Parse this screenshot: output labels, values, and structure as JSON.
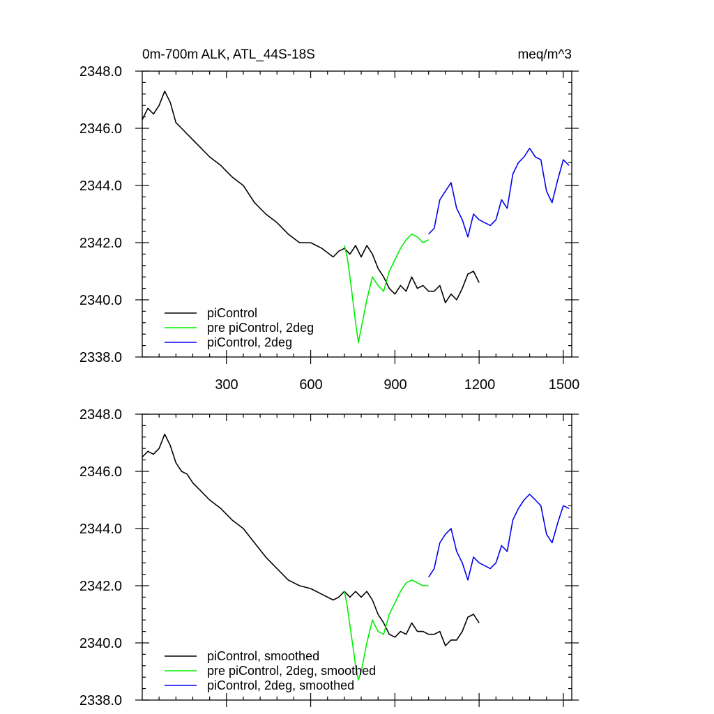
{
  "chart_data": [
    {
      "type": "line",
      "title": "0m-700m ALK, ATL_44S-18S",
      "units": "meq/m^3",
      "xlim": [
        0,
        1530
      ],
      "ylim": [
        2338.0,
        2348.0
      ],
      "xticks": [
        300,
        600,
        900,
        1200,
        1500
      ],
      "xtick_labels": [
        "300",
        "600",
        "900",
        "1200",
        "1500"
      ],
      "yticks": [
        2338.0,
        2340.0,
        2342.0,
        2344.0,
        2346.0,
        2348.0
      ],
      "ytick_labels": [
        "2338.0",
        "2340.0",
        "2342.0",
        "2344.0",
        "2346.0",
        "2348.0"
      ],
      "legend_position": "bottom-left",
      "grid": false,
      "series": [
        {
          "name": "piControl",
          "color": "#000000",
          "x": [
            0,
            20,
            40,
            60,
            80,
            100,
            120,
            140,
            160,
            180,
            200,
            240,
            280,
            320,
            360,
            400,
            440,
            480,
            520,
            560,
            600,
            640,
            680,
            700,
            720,
            740,
            760,
            780,
            800,
            820,
            840,
            860,
            880,
            900,
            920,
            940,
            960,
            980,
            1000,
            1020,
            1040,
            1060,
            1080,
            1100,
            1120,
            1140,
            1160,
            1180,
            1200
          ],
          "y": [
            2346.3,
            2346.7,
            2346.5,
            2346.8,
            2347.3,
            2346.9,
            2346.2,
            2346.0,
            2345.8,
            2345.6,
            2345.4,
            2345.0,
            2344.7,
            2344.3,
            2344.0,
            2343.4,
            2343.0,
            2342.7,
            2342.3,
            2342.0,
            2342.0,
            2341.8,
            2341.5,
            2341.7,
            2341.8,
            2341.6,
            2341.9,
            2341.5,
            2341.9,
            2341.6,
            2341.1,
            2340.8,
            2340.4,
            2340.2,
            2340.5,
            2340.3,
            2340.8,
            2340.4,
            2340.5,
            2340.3,
            2340.3,
            2340.5,
            2339.9,
            2340.2,
            2340.0,
            2340.4,
            2340.9,
            2341.0,
            2340.6
          ]
        },
        {
          "name": "pre piControl, 2deg",
          "color": "#00ee00",
          "x": [
            720,
            730,
            740,
            750,
            760,
            770,
            780,
            790,
            800,
            820,
            840,
            860,
            880,
            900,
            920,
            940,
            960,
            980,
            1000,
            1020
          ],
          "y": [
            2341.9,
            2341.5,
            2340.8,
            2340.0,
            2339.2,
            2338.5,
            2339.0,
            2339.5,
            2340.0,
            2340.8,
            2340.5,
            2340.3,
            2341.0,
            2341.4,
            2341.8,
            2342.1,
            2342.3,
            2342.2,
            2342.0,
            2342.1
          ]
        },
        {
          "name": "piControl, 2deg",
          "color": "#0000ee",
          "x": [
            1020,
            1040,
            1060,
            1080,
            1100,
            1120,
            1140,
            1160,
            1180,
            1200,
            1220,
            1240,
            1260,
            1280,
            1300,
            1320,
            1340,
            1360,
            1380,
            1400,
            1420,
            1440,
            1460,
            1480,
            1500,
            1520
          ],
          "y": [
            2342.3,
            2342.5,
            2343.5,
            2343.8,
            2344.1,
            2343.2,
            2342.8,
            2342.2,
            2343.0,
            2342.8,
            2342.7,
            2342.6,
            2342.8,
            2343.5,
            2343.2,
            2344.4,
            2344.8,
            2345.0,
            2345.3,
            2345.0,
            2344.9,
            2343.8,
            2343.4,
            2344.2,
            2344.9,
            2344.7
          ]
        }
      ]
    },
    {
      "type": "line",
      "xlim": [
        0,
        1530
      ],
      "ylim": [
        2338.0,
        2348.0
      ],
      "xticks": [
        300,
        600,
        900,
        1200,
        1500
      ],
      "yticks": [
        2338.0,
        2340.0,
        2342.0,
        2344.0,
        2346.0,
        2348.0
      ],
      "ytick_labels": [
        "2338.0",
        "2340.0",
        "2342.0",
        "2344.0",
        "2346.0",
        "2348.0"
      ],
      "legend_position": "bottom-left",
      "grid": false,
      "series": [
        {
          "name": "piControl, smoothed",
          "color": "#000000",
          "x": [
            0,
            20,
            40,
            60,
            80,
            100,
            120,
            140,
            160,
            180,
            200,
            240,
            280,
            320,
            360,
            400,
            440,
            480,
            520,
            560,
            600,
            640,
            680,
            700,
            720,
            740,
            760,
            780,
            800,
            820,
            840,
            860,
            880,
            900,
            920,
            940,
            960,
            980,
            1000,
            1020,
            1040,
            1060,
            1080,
            1100,
            1120,
            1140,
            1160,
            1180,
            1200
          ],
          "y": [
            2346.5,
            2346.7,
            2346.6,
            2346.8,
            2347.3,
            2346.9,
            2346.3,
            2346.0,
            2345.9,
            2345.6,
            2345.4,
            2345.0,
            2344.7,
            2344.3,
            2344.0,
            2343.5,
            2343.0,
            2342.6,
            2342.2,
            2342.0,
            2341.9,
            2341.7,
            2341.5,
            2341.6,
            2341.8,
            2341.6,
            2341.8,
            2341.6,
            2341.8,
            2341.5,
            2341.0,
            2340.7,
            2340.3,
            2340.2,
            2340.4,
            2340.3,
            2340.7,
            2340.4,
            2340.4,
            2340.3,
            2340.3,
            2340.4,
            2339.9,
            2340.1,
            2340.1,
            2340.4,
            2340.9,
            2341.0,
            2340.7
          ]
        },
        {
          "name": "pre piControl, 2deg, smoothed",
          "color": "#00ee00",
          "x": [
            720,
            730,
            740,
            750,
            760,
            770,
            780,
            790,
            800,
            820,
            840,
            860,
            880,
            900,
            920,
            940,
            960,
            980,
            1000,
            1020
          ],
          "y": [
            2341.8,
            2341.3,
            2340.6,
            2339.9,
            2339.2,
            2338.7,
            2339.0,
            2339.5,
            2340.0,
            2340.8,
            2340.4,
            2340.3,
            2341.0,
            2341.4,
            2341.8,
            2342.1,
            2342.2,
            2342.1,
            2342.0,
            2342.0
          ]
        },
        {
          "name": "piControl, 2deg, smoothed",
          "color": "#0000ee",
          "x": [
            1020,
            1040,
            1060,
            1080,
            1100,
            1120,
            1140,
            1160,
            1180,
            1200,
            1220,
            1240,
            1260,
            1280,
            1300,
            1320,
            1340,
            1360,
            1380,
            1400,
            1420,
            1440,
            1460,
            1480,
            1500,
            1520
          ],
          "y": [
            2342.3,
            2342.6,
            2343.5,
            2343.8,
            2344.0,
            2343.2,
            2342.8,
            2342.2,
            2343.0,
            2342.8,
            2342.7,
            2342.6,
            2342.8,
            2343.4,
            2343.2,
            2344.3,
            2344.7,
            2345.0,
            2345.2,
            2345.0,
            2344.8,
            2343.8,
            2343.5,
            2344.2,
            2344.8,
            2344.7
          ]
        }
      ]
    }
  ]
}
